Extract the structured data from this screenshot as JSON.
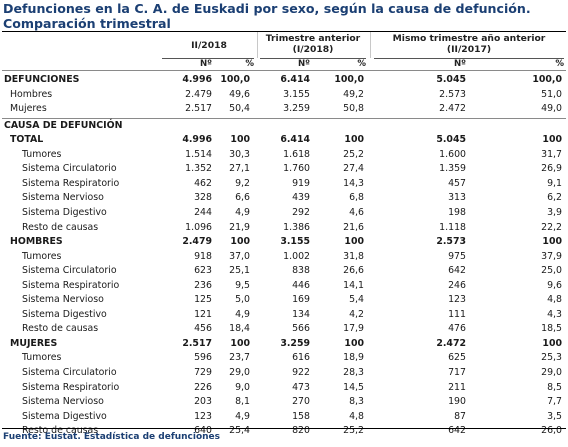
{
  "title_line1": "Defunciones en la C. A. de Euskadi por sexo, según la causa de defunción.",
  "title_line2": "Comparación trimestral",
  "col_groups": [
    "II/2018",
    "Trimestre anterior\n(I/2018)",
    "Mismo trimestre año anterior\n(II/2017)"
  ],
  "col_group_lines": [
    [
      "II/2018"
    ],
    [
      "Trimestre anterior",
      "(I/2018)"
    ],
    [
      "Mismo trimestre año anterior",
      "(II/2017)"
    ]
  ],
  "sub_num": "Nº",
  "sub_pct": "%",
  "source": "Fuente: Eustat. Estadística de defunciones",
  "rows": [
    {
      "label": "DEFUNCIONES",
      "indent": 0,
      "bold": true,
      "values": [
        "4.996",
        "100,0",
        "6.414",
        "100,0",
        "5.045",
        "100,0"
      ]
    },
    {
      "label": "Hombres",
      "indent": 1,
      "bold": false,
      "values": [
        "2.479",
        "49,6",
        "3.155",
        "49,2",
        "2.573",
        "51,0"
      ]
    },
    {
      "label": "Mujeres",
      "indent": 1,
      "bold": false,
      "values": [
        "2.517",
        "50,4",
        "3.259",
        "50,8",
        "2.472",
        "49,0"
      ]
    },
    {
      "label": "CAUSA DE DEFUNCIÓN",
      "indent": 0,
      "bold": true,
      "values": [
        "",
        "",
        "",
        "",
        "",
        ""
      ],
      "rule_before": true
    },
    {
      "label": "TOTAL",
      "indent": 1,
      "bold": true,
      "values": [
        "4.996",
        "100",
        "6.414",
        "100",
        "5.045",
        "100"
      ]
    },
    {
      "label": "Tumores",
      "indent": 2,
      "bold": false,
      "values": [
        "1.514",
        "30,3",
        "1.618",
        "25,2",
        "1.600",
        "31,7"
      ]
    },
    {
      "label": "Sistema Circulatorio",
      "indent": 2,
      "bold": false,
      "values": [
        "1.352",
        "27,1",
        "1.760",
        "27,4",
        "1.359",
        "26,9"
      ]
    },
    {
      "label": "Sistema Respiratorio",
      "indent": 2,
      "bold": false,
      "values": [
        "462",
        "9,2",
        "919",
        "14,3",
        "457",
        "9,1"
      ]
    },
    {
      "label": "Sistema Nervioso",
      "indent": 2,
      "bold": false,
      "values": [
        "328",
        "6,6",
        "439",
        "6,8",
        "313",
        "6,2"
      ]
    },
    {
      "label": "Sistema Digestivo",
      "indent": 2,
      "bold": false,
      "values": [
        "244",
        "4,9",
        "292",
        "4,6",
        "198",
        "3,9"
      ]
    },
    {
      "label": "Resto de causas",
      "indent": 2,
      "bold": false,
      "values": [
        "1.096",
        "21,9",
        "1.386",
        "21,6",
        "1.118",
        "22,2"
      ]
    },
    {
      "label": "HOMBRES",
      "indent": 1,
      "bold": true,
      "values": [
        "2.479",
        "100",
        "3.155",
        "100",
        "2.573",
        "100"
      ]
    },
    {
      "label": "Tumores",
      "indent": 2,
      "bold": false,
      "values": [
        "918",
        "37,0",
        "1.002",
        "31,8",
        "975",
        "37,9"
      ]
    },
    {
      "label": "Sistema Circulatorio",
      "indent": 2,
      "bold": false,
      "values": [
        "623",
        "25,1",
        "838",
        "26,6",
        "642",
        "25,0"
      ]
    },
    {
      "label": "Sistema Respiratorio",
      "indent": 2,
      "bold": false,
      "values": [
        "236",
        "9,5",
        "446",
        "14,1",
        "246",
        "9,6"
      ]
    },
    {
      "label": "Sistema Nervioso",
      "indent": 2,
      "bold": false,
      "values": [
        "125",
        "5,0",
        "169",
        "5,4",
        "123",
        "4,8"
      ]
    },
    {
      "label": "Sistema Digestivo",
      "indent": 2,
      "bold": false,
      "values": [
        "121",
        "4,9",
        "134",
        "4,2",
        "111",
        "4,3"
      ]
    },
    {
      "label": "Resto de causas",
      "indent": 2,
      "bold": false,
      "values": [
        "456",
        "18,4",
        "566",
        "17,9",
        "476",
        "18,5"
      ]
    },
    {
      "label": "MUJERES",
      "indent": 1,
      "bold": true,
      "values": [
        "2.517",
        "100",
        "3.259",
        "100",
        "2.472",
        "100"
      ]
    },
    {
      "label": "Tumores",
      "indent": 2,
      "bold": false,
      "values": [
        "596",
        "23,7",
        "616",
        "18,9",
        "625",
        "25,3"
      ]
    },
    {
      "label": "Sistema Circulatorio",
      "indent": 2,
      "bold": false,
      "values": [
        "729",
        "29,0",
        "922",
        "28,3",
        "717",
        "29,0"
      ]
    },
    {
      "label": "Sistema Respiratorio",
      "indent": 2,
      "bold": false,
      "values": [
        "226",
        "9,0",
        "473",
        "14,5",
        "211",
        "8,5"
      ]
    },
    {
      "label": "Sistema Nervioso",
      "indent": 2,
      "bold": false,
      "values": [
        "203",
        "8,1",
        "270",
        "8,3",
        "190",
        "7,7"
      ]
    },
    {
      "label": "Sistema Digestivo",
      "indent": 2,
      "bold": false,
      "values": [
        "123",
        "4,9",
        "158",
        "4,8",
        "87",
        "3,5"
      ]
    },
    {
      "label": "Resto de causas",
      "indent": 2,
      "bold": false,
      "values": [
        "640",
        "25,4",
        "820",
        "25,2",
        "642",
        "26,0"
      ]
    }
  ],
  "colors": {
    "title": "#1b3f73",
    "source": "#1b3f73",
    "text": "#1a1a1a"
  }
}
